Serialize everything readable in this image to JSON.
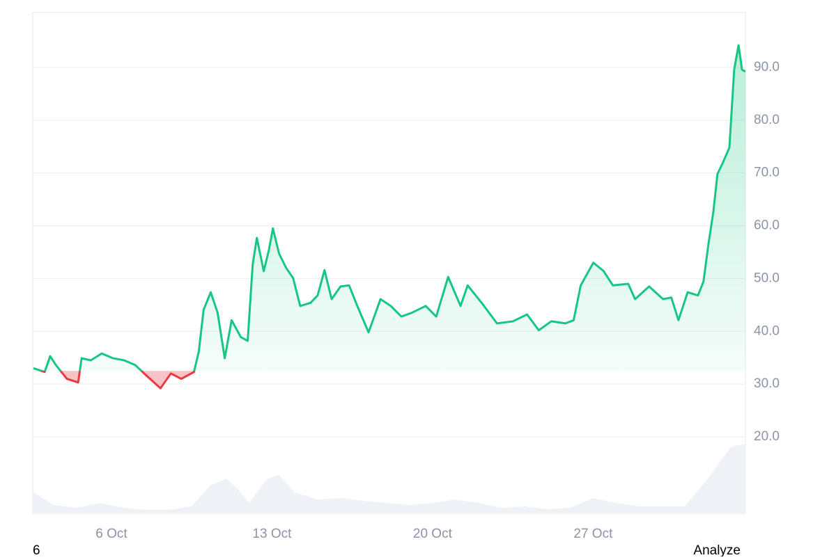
{
  "chart_data": {
    "type": "line",
    "x": [
      2.6,
      3.09,
      3.33,
      3.58,
      4.06,
      4.55,
      4.7,
      5.1,
      5.58,
      6.07,
      6.56,
      7.04,
      7.53,
      8.14,
      8.59,
      9.05,
      9.6,
      9.81,
      10.02,
      10.33,
      10.63,
      10.94,
      11.24,
      11.64,
      11.94,
      12.16,
      12.34,
      12.64,
      12.86,
      13.04,
      13.31,
      13.62,
      13.92,
      14.23,
      14.68,
      14.99,
      15.29,
      15.6,
      15.99,
      16.36,
      16.72,
      17.21,
      17.73,
      18.18,
      18.64,
      19.09,
      19.7,
      20.16,
      20.68,
      21.22,
      21.53,
      22.14,
      22.81,
      23.51,
      24.12,
      24.63,
      25.18,
      25.79,
      26.15,
      26.46,
      27.01,
      27.46,
      27.86,
      28.53,
      28.83,
      29.44,
      30.05,
      30.41,
      30.72,
      31.12,
      31.57,
      31.81,
      32.03,
      32.24,
      32.42,
      32.64,
      32.94,
      33.15,
      33.34,
      33.49,
      33.64
    ],
    "series": [
      {
        "color": "#16c784",
        "below_color": "#ea3943",
        "values": [
          33.0,
          32.3,
          35.3,
          33.6,
          31.0,
          30.3,
          34.9,
          34.5,
          35.8,
          34.9,
          34.5,
          33.6,
          31.6,
          29.2,
          32.0,
          31.0,
          32.3,
          36.2,
          44.1,
          47.4,
          43.5,
          34.9,
          42.1,
          38.9,
          38.2,
          52.7,
          57.7,
          51.4,
          55.3,
          59.5,
          54.7,
          52.0,
          50.1,
          44.8,
          45.4,
          46.8,
          51.6,
          46.1,
          48.5,
          48.7,
          44.8,
          39.8,
          46.1,
          44.8,
          42.8,
          43.5,
          44.8,
          42.8,
          50.3,
          44.8,
          48.7,
          45.4,
          41.5,
          41.9,
          43.2,
          40.2,
          41.9,
          41.5,
          42.1,
          48.7,
          53.0,
          51.4,
          48.7,
          49.0,
          46.1,
          48.5,
          46.1,
          46.4,
          42.1,
          47.4,
          46.8,
          49.4,
          56.6,
          62.6,
          69.8,
          71.8,
          74.8,
          89.6,
          94.2,
          89.6,
          89.2
        ]
      }
    ],
    "baseline": 32.5,
    "xlim": [
      2.57,
      33.64
    ],
    "xticks": [
      {
        "value": 6,
        "label": "6 Oct"
      },
      {
        "value": 13,
        "label": "13 Oct"
      },
      {
        "value": 20,
        "label": "20 Oct"
      },
      {
        "value": 27,
        "label": "27 Oct"
      }
    ],
    "ylim": [
      5.5,
      100.4
    ],
    "yticks": [
      {
        "value": 20,
        "label": "20.0"
      },
      {
        "value": 30,
        "label": "30.0"
      },
      {
        "value": 40,
        "label": "40.0"
      },
      {
        "value": 50,
        "label": "50.0"
      },
      {
        "value": 60,
        "label": "60.0"
      },
      {
        "value": 70,
        "label": "70.0"
      },
      {
        "value": 80,
        "label": "80.0"
      },
      {
        "value": 90,
        "label": "90.0"
      }
    ],
    "grid": true,
    "volume": {
      "color": "#eef1f5",
      "x": [
        2.6,
        3.5,
        4.5,
        5.5,
        6.5,
        7.5,
        8.5,
        9.5,
        10.3,
        11,
        11.5,
        12,
        12.8,
        13.3,
        14,
        15,
        16,
        17,
        18,
        19,
        20,
        21,
        22,
        23,
        24,
        25,
        26,
        27,
        28,
        29,
        30,
        31,
        32,
        33,
        33.64
      ],
      "values": [
        30,
        12,
        8,
        15,
        8,
        5,
        5,
        10,
        40,
        50,
        35,
        15,
        50,
        55,
        30,
        20,
        22,
        18,
        15,
        12,
        15,
        20,
        15,
        8,
        10,
        6,
        8,
        22,
        15,
        10,
        10,
        10,
        50,
        95,
        100
      ],
      "ylim": [
        0,
        110
      ]
    }
  },
  "footer": {
    "left": "6",
    "right": "Analyze"
  }
}
